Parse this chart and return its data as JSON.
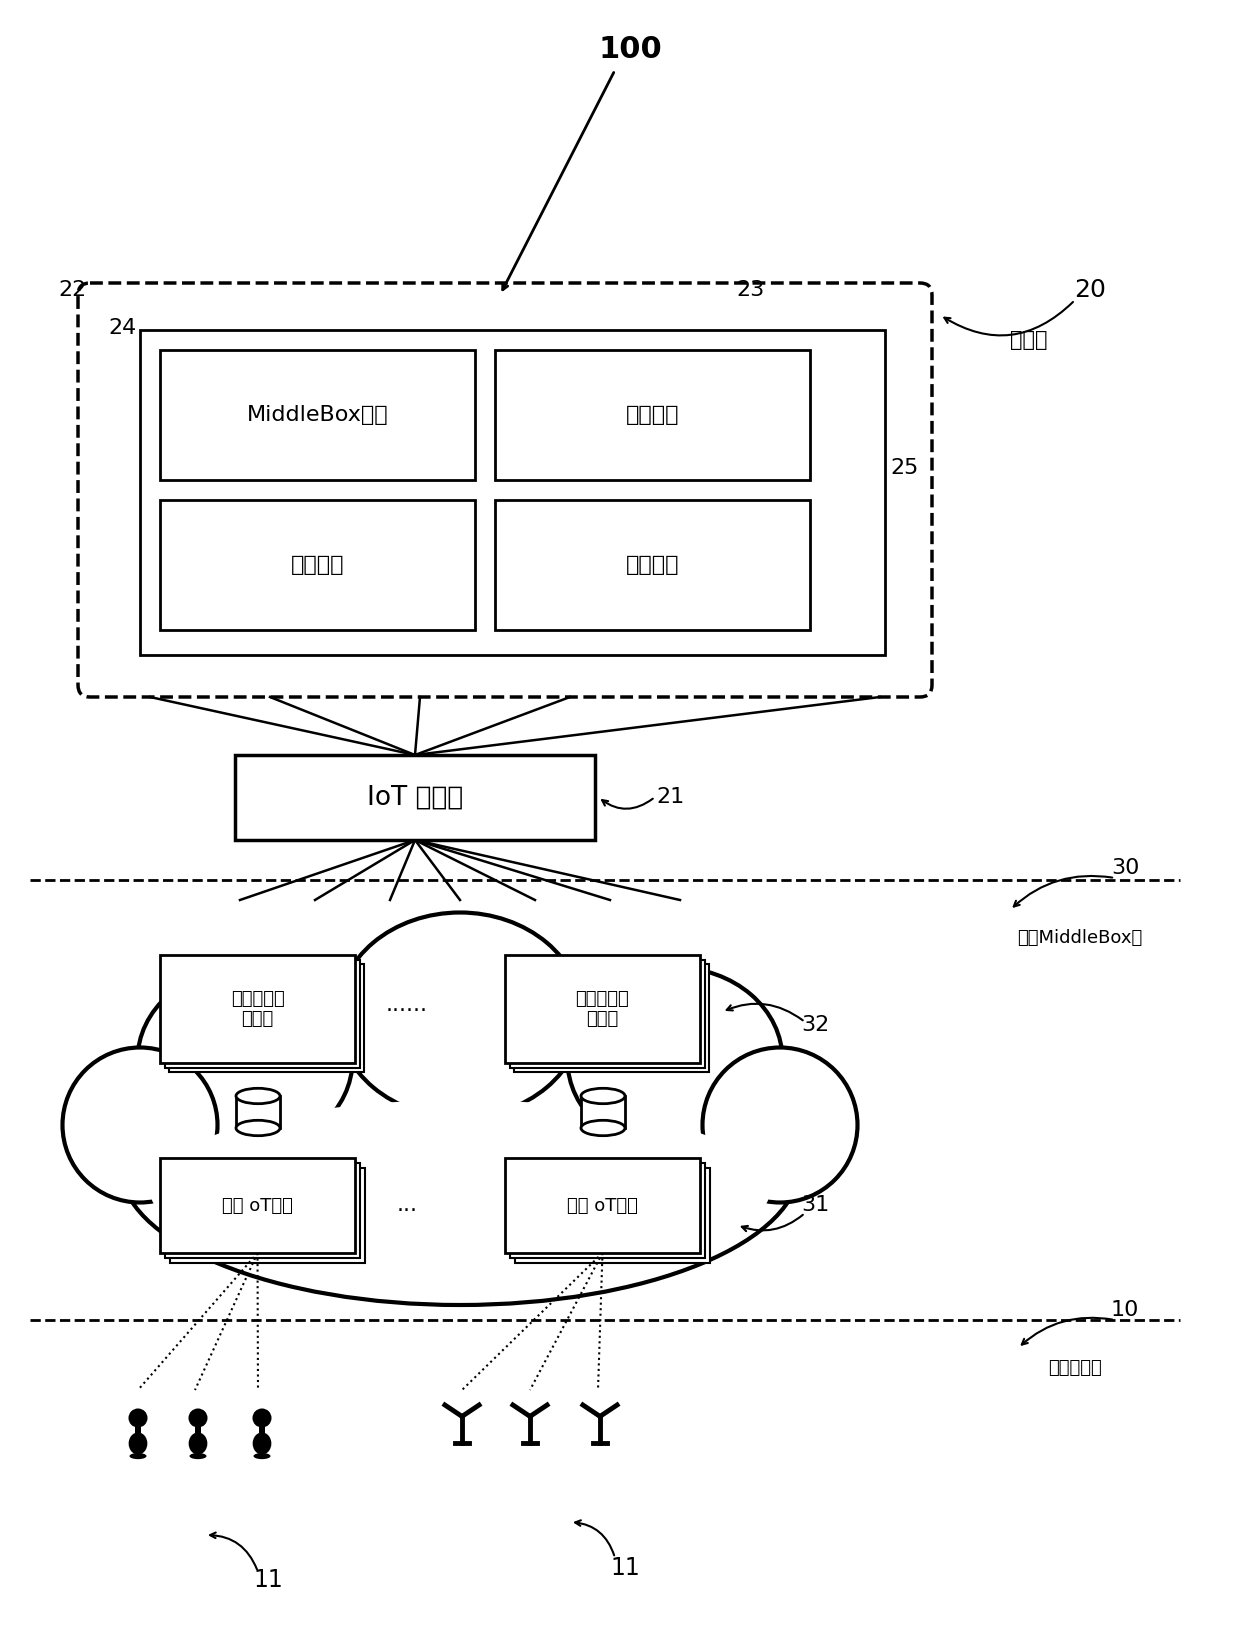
{
  "bg_color": "#ffffff",
  "label_100": "100",
  "label_20": "20",
  "label_22": "22",
  "label_23": "23",
  "label_24": "24",
  "label_25": "25",
  "label_21": "21",
  "label_30": "30",
  "label_31": "31",
  "label_32": "32",
  "label_10": "10",
  "label_11": "11",
  "text_control_layer": "控制层",
  "text_middlebox_mgmt": "MiddleBox管理",
  "text_traffic_mgmt": "流量管理",
  "text_policy_mgmt": "策略管理",
  "text_network_monitor": "网络监控",
  "text_iot_controller": "IoT 控制器",
  "text_virtual_middlebox_layer": "虚拟MiddleBox层",
  "text_context_monitor": "上下文感知\n监控器",
  "text_virtual_iot": "虚拟 oT设备",
  "text_physical_layer": "物理设备层"
}
